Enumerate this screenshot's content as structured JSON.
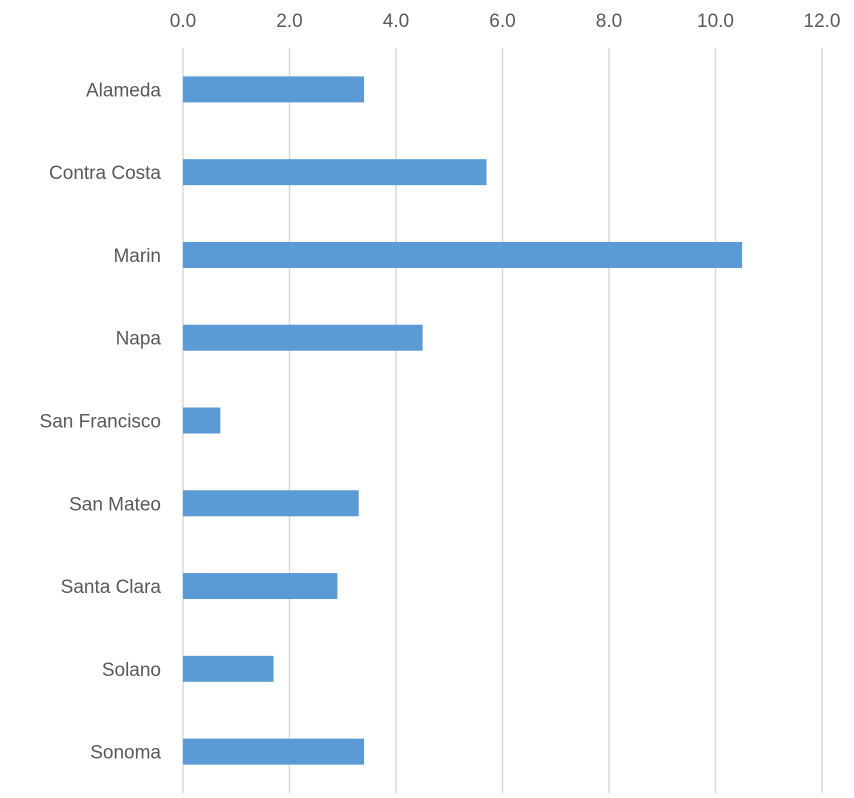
{
  "chart_data": {
    "type": "bar",
    "orientation": "horizontal",
    "title": "",
    "xlabel": "",
    "ylabel": "",
    "categories": [
      "Alameda",
      "Contra Costa",
      "Marin",
      "Napa",
      "San Francisco",
      "San Mateo",
      "Santa Clara",
      "Solano",
      "Sonoma"
    ],
    "values": [
      3.4,
      5.7,
      10.5,
      4.5,
      0.7,
      3.3,
      2.9,
      1.7,
      3.4
    ],
    "xlim": [
      0,
      12
    ],
    "x_ticks": [
      "0.0",
      "2.0",
      "4.0",
      "6.0",
      "8.0",
      "10.0",
      "12.0"
    ],
    "x_axis_position": "top",
    "grid": true,
    "legend": "none",
    "bar_color": "#5b9bd5"
  }
}
